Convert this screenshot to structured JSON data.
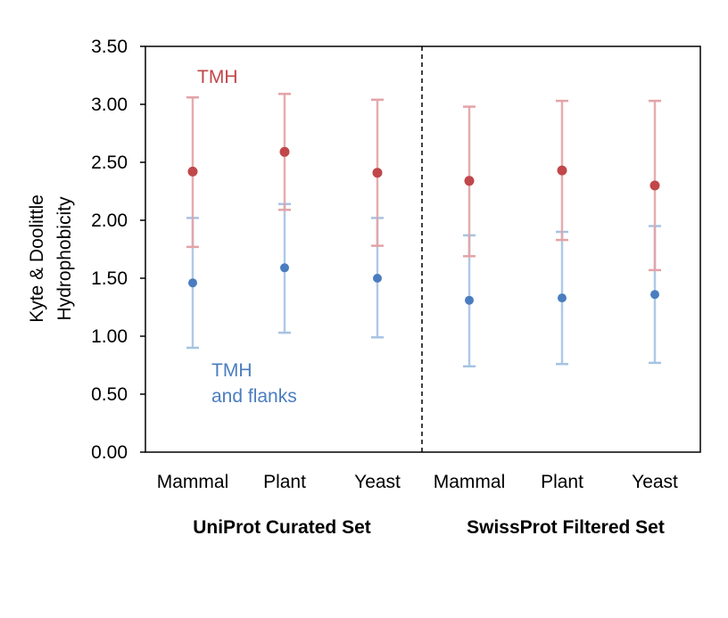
{
  "chart_data": {
    "type": "scatter",
    "ylabel_line1": "Kyte & Doolittle",
    "ylabel_line2": "Hydrophobicity",
    "ylim": [
      0,
      3.5
    ],
    "yticks": [
      "0.00",
      "0.50",
      "1.00",
      "1.50",
      "2.00",
      "2.50",
      "3.00",
      "3.50"
    ],
    "categories": [
      "Mammal",
      "Plant",
      "Yeast",
      "Mammal",
      "Plant",
      "Yeast"
    ],
    "groups": [
      "UniProt Curated Set",
      "SwissProt Filtered Set"
    ],
    "grid": false,
    "divider": "dashed line between the two groups",
    "series": [
      {
        "name": "TMH",
        "label_line1": "TMH",
        "label_line2": "",
        "color": "#c0474a",
        "error_color": "#e3a3a6",
        "values": [
          2.42,
          2.59,
          2.41,
          2.34,
          2.43,
          2.3
        ],
        "lower": [
          1.77,
          2.09,
          1.78,
          1.69,
          1.83,
          1.57
        ],
        "upper": [
          3.06,
          3.09,
          3.04,
          2.98,
          3.03,
          3.03
        ]
      },
      {
        "name": "TMH and flanks",
        "label_line1": "TMH",
        "label_line2": "and flanks",
        "color": "#4a7dbf",
        "error_color": "#a6c3e3",
        "values": [
          1.46,
          1.59,
          1.5,
          1.31,
          1.33,
          1.36
        ],
        "lower": [
          0.9,
          1.03,
          0.99,
          0.74,
          0.76,
          0.77
        ],
        "upper": [
          2.02,
          2.14,
          2.02,
          1.87,
          1.9,
          1.95
        ]
      }
    ]
  }
}
